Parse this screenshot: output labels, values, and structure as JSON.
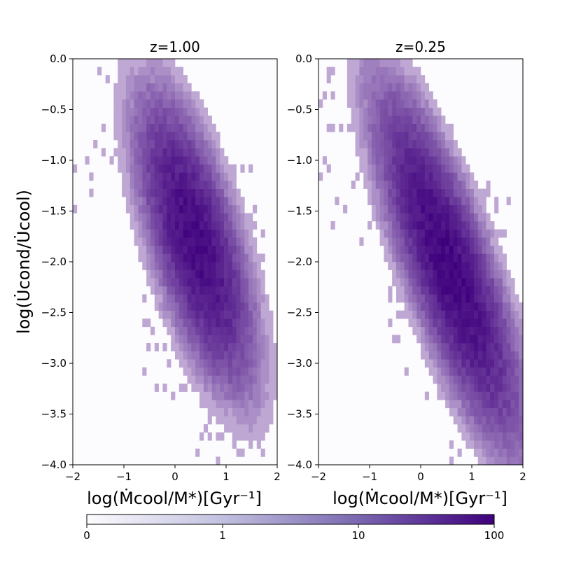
{
  "figure": {
    "ylabel": "log(U̇cond/U̇cool)",
    "xlabel": "log(Ṁcool/M*)[Gyr⁻¹]"
  },
  "colors": {
    "cmap_low": "#fcfbfd",
    "cmap_high": "#3f007d",
    "background": "#fcfbfd",
    "frame": "#000000"
  },
  "colorbar": {
    "scale": "symlog",
    "ticks": [
      {
        "label": "0",
        "value": 0
      },
      {
        "label": "1",
        "value": 1
      },
      {
        "label": "10",
        "value": 10
      },
      {
        "label": "100",
        "value": 100
      }
    ]
  },
  "chart_data": [
    {
      "type": "heatmap",
      "title": "z=1.00",
      "xlabel": "log(Ṁcool/M*)[Gyr⁻¹]",
      "ylabel": "log(U̇cond/U̇cool)",
      "xlim": [
        -2,
        2
      ],
      "ylim": [
        -4,
        0
      ],
      "xticks": [
        "−2",
        "−1",
        "0",
        "1",
        "2"
      ],
      "yticks": [
        "0.0",
        "−0.5",
        "−1.0",
        "−1.5",
        "−2.0",
        "−2.5",
        "−3.0",
        "−3.5",
        "−4.0"
      ],
      "bin_width": 0.08,
      "peak": {
        "x": 0.4,
        "y": -1.8,
        "count": 80
      },
      "core_extent": {
        "x": [
          -0.4,
          1.4
        ],
        "y": [
          -3.1,
          -1.1
        ]
      },
      "scatter_tail": {
        "x": [
          -2.0,
          0.0
        ],
        "y": [
          -1.5,
          0.0
        ]
      },
      "grid": false
    },
    {
      "type": "heatmap",
      "title": "z=0.25",
      "xlabel": "log(Ṁcool/M*)[Gyr⁻¹]",
      "ylabel": "",
      "xlim": [
        -2,
        2
      ],
      "ylim": [
        -4,
        0
      ],
      "xticks": [
        "−2",
        "−1",
        "0",
        "1",
        "2"
      ],
      "yticks": [
        "0.0",
        "−0.5",
        "−1.0",
        "−1.5",
        "−2.0",
        "−2.5",
        "−3.0",
        "−3.5",
        "−4.0"
      ],
      "bin_width": 0.08,
      "peak": {
        "x": 0.55,
        "y": -2.05,
        "count": 90
      },
      "core_extent": {
        "x": [
          -0.4,
          1.8
        ],
        "y": [
          -3.9,
          -1.1
        ]
      },
      "scatter_tail": {
        "x": [
          -2.0,
          0.0
        ],
        "y": [
          -1.8,
          0.0
        ]
      },
      "grid": false
    }
  ]
}
